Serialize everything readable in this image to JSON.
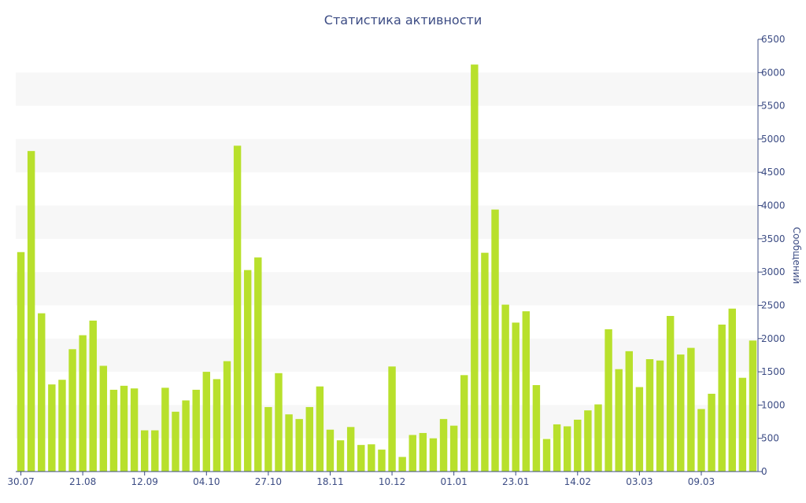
{
  "chart_data": {
    "type": "bar",
    "title": "Статистика активности",
    "ylabel": "Сообщений",
    "ylim": [
      0,
      6500
    ],
    "yticks": [
      0,
      500,
      1000,
      1500,
      2000,
      2500,
      3000,
      3500,
      4000,
      4500,
      5000,
      5500,
      6000,
      6500
    ],
    "ytick_labels": [
      "0",
      "500",
      "1000",
      "1500",
      "2000",
      "2500",
      "3000",
      "3500",
      "4000",
      "4500",
      "5000",
      "5500",
      "6000",
      "6500"
    ],
    "yaxis_position": "right",
    "grid": "alternating horizontal bands",
    "bar_color": "#b8e02c",
    "band_color": "#f7f7f7",
    "axis_color": "#3c4c84",
    "xtick_labels": [
      {
        "index": 0,
        "label": "30.07"
      },
      {
        "index": 6,
        "label": "21.08"
      },
      {
        "index": 12,
        "label": "12.09"
      },
      {
        "index": 18,
        "label": "04.10"
      },
      {
        "index": 24,
        "label": "27.10"
      },
      {
        "index": 30,
        "label": "18.11"
      },
      {
        "index": 36,
        "label": "10.12"
      },
      {
        "index": 42,
        "label": "01.01"
      },
      {
        "index": 48,
        "label": "23.01"
      },
      {
        "index": 54,
        "label": "14.02"
      },
      {
        "index": 60,
        "label": "03.03"
      },
      {
        "index": 66,
        "label": "09.03"
      }
    ],
    "values": [
      3300,
      4820,
      2380,
      1310,
      1380,
      1840,
      2050,
      2270,
      1590,
      1230,
      1290,
      1250,
      620,
      620,
      1260,
      900,
      1070,
      1230,
      1500,
      1390,
      1660,
      4900,
      3030,
      3220,
      970,
      1480,
      860,
      790,
      970,
      1280,
      630,
      470,
      670,
      400,
      410,
      330,
      1580,
      220,
      550,
      580,
      500,
      790,
      690,
      1450,
      6120,
      3290,
      3940,
      2510,
      2240,
      2410,
      1300,
      490,
      710,
      680,
      780,
      920,
      1010,
      2140,
      1540,
      1810,
      1270,
      1690,
      1670,
      2340,
      1760,
      1860,
      940,
      1170,
      2210,
      2450,
      1410,
      1970
    ]
  }
}
